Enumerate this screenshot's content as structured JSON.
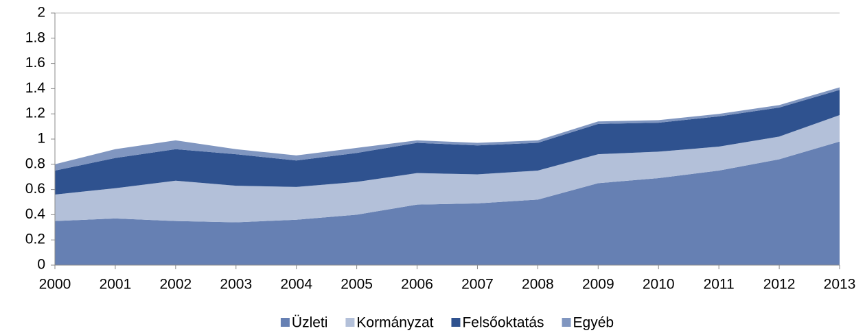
{
  "chart_data": {
    "type": "stacked-area",
    "x": [
      2000,
      2001,
      2002,
      2003,
      2004,
      2005,
      2006,
      2007,
      2008,
      2009,
      2010,
      2011,
      2012,
      2013
    ],
    "xlim": [
      2000,
      2013
    ],
    "xticks": [
      2000,
      2001,
      2002,
      2003,
      2004,
      2005,
      2006,
      2007,
      2008,
      2009,
      2010,
      2011,
      2012,
      2013
    ],
    "ylim": [
      0,
      2
    ],
    "yticks": [
      0,
      0.2,
      0.4,
      0.6,
      0.8,
      1,
      1.2,
      1.4,
      1.6,
      1.8,
      2
    ],
    "grid": false,
    "legend": "bottom",
    "series": [
      {
        "name": "Üzleti",
        "color": "#6680b3",
        "values": [
          0.35,
          0.37,
          0.35,
          0.34,
          0.36,
          0.4,
          0.48,
          0.49,
          0.52,
          0.65,
          0.69,
          0.75,
          0.84,
          0.98
        ]
      },
      {
        "name": "Kormányzat",
        "color": "#b3c0d9",
        "values": [
          0.21,
          0.24,
          0.32,
          0.29,
          0.26,
          0.26,
          0.25,
          0.23,
          0.23,
          0.23,
          0.21,
          0.19,
          0.18,
          0.21
        ]
      },
      {
        "name": "Felsőoktatás",
        "color": "#2f528f",
        "values": [
          0.19,
          0.24,
          0.25,
          0.25,
          0.21,
          0.23,
          0.24,
          0.23,
          0.22,
          0.24,
          0.23,
          0.24,
          0.23,
          0.2
        ]
      },
      {
        "name": "Egyéb",
        "color": "#8096c0",
        "values": [
          0.05,
          0.07,
          0.07,
          0.04,
          0.04,
          0.04,
          0.02,
          0.02,
          0.02,
          0.02,
          0.02,
          0.02,
          0.02,
          0.02
        ]
      }
    ]
  }
}
